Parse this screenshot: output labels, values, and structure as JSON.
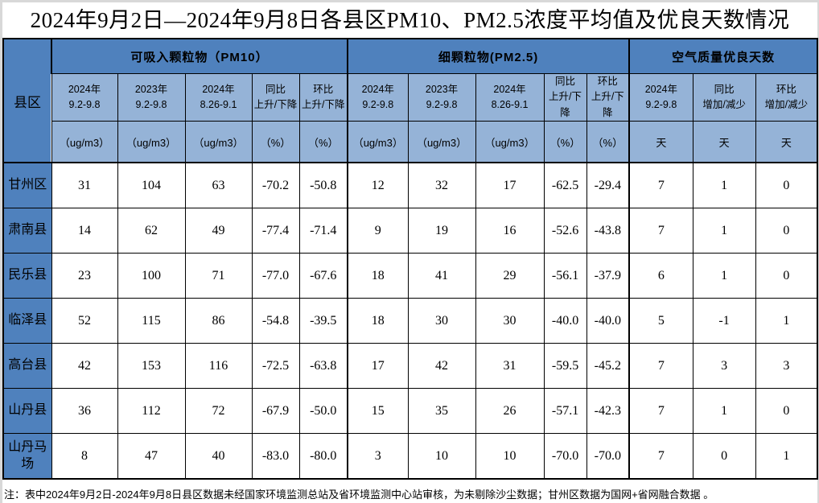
{
  "title": "2024年9月2日—2024年9月8日各县区PM10、PM2.5浓度平均值及优良天数情况",
  "table": {
    "corner": {
      "label": "县区"
    },
    "groups": [
      {
        "label": "可吸入颗粒物（PM10）",
        "columns": [
          {
            "line1": "2024年",
            "line2": "9.2-9.8",
            "unit": "（ug/m3）"
          },
          {
            "line1": "2023年",
            "line2": "9.2-9.8",
            "unit": "（ug/m3）"
          },
          {
            "line1": "2024年",
            "line2": "8.26-9.1",
            "unit": "（ug/m3）"
          },
          {
            "line1": "同比",
            "line2": "上升/下降",
            "unit": "（%）"
          },
          {
            "line1": "环比",
            "line2": "上升/下降",
            "unit": "（%）"
          }
        ]
      },
      {
        "label": "细颗粒物(PM2.5)",
        "columns": [
          {
            "line1": "2024年",
            "line2": "9.2-9.8",
            "unit": "（ug/m3）"
          },
          {
            "line1": "2023年",
            "line2": "9.2-9.8",
            "unit": "（ug/m3）"
          },
          {
            "line1": "2024年",
            "line2": "8.26-9.1",
            "unit": "（ug/m3）"
          },
          {
            "line1": "同比",
            "line2": "上升/下降",
            "unit": "（%）"
          },
          {
            "line1": "环比",
            "line2": "上升/下降",
            "unit": "（%）"
          }
        ]
      },
      {
        "label": "空气质量优良天数",
        "columns": [
          {
            "line1": "2024年",
            "line2": "9.2-9.8",
            "unit": "天"
          },
          {
            "line1": "同比",
            "line2": "增加/减少",
            "unit": "天"
          },
          {
            "line1": "环比",
            "line2": "增加/减少",
            "unit": "天"
          }
        ]
      }
    ],
    "rows": [
      {
        "county": "甘州区",
        "values": [
          "31",
          "104",
          "63",
          "-70.2",
          "-50.8",
          "12",
          "32",
          "17",
          "-62.5",
          "-29.4",
          "7",
          "1",
          "0"
        ]
      },
      {
        "county": "肃南县",
        "values": [
          "14",
          "62",
          "49",
          "-77.4",
          "-71.4",
          "9",
          "19",
          "16",
          "-52.6",
          "-43.8",
          "7",
          "1",
          "0"
        ]
      },
      {
        "county": "民乐县",
        "values": [
          "23",
          "100",
          "71",
          "-77.0",
          "-67.6",
          "18",
          "41",
          "29",
          "-56.1",
          "-37.9",
          "6",
          "1",
          "0"
        ]
      },
      {
        "county": "临泽县",
        "values": [
          "52",
          "115",
          "86",
          "-54.8",
          "-39.5",
          "18",
          "30",
          "30",
          "-40.0",
          "-40.0",
          "5",
          "-1",
          "1"
        ]
      },
      {
        "county": "高台县",
        "values": [
          "42",
          "153",
          "116",
          "-72.5",
          "-63.8",
          "17",
          "42",
          "31",
          "-59.5",
          "-45.2",
          "7",
          "3",
          "3"
        ]
      },
      {
        "county": "山丹县",
        "values": [
          "36",
          "112",
          "72",
          "-67.9",
          "-50.0",
          "15",
          "35",
          "26",
          "-57.1",
          "-42.3",
          "7",
          "1",
          "0"
        ]
      },
      {
        "county": "山丹马场",
        "values": [
          "8",
          "47",
          "40",
          "-83.0",
          "-80.0",
          "3",
          "10",
          "10",
          "-70.0",
          "-70.0",
          "7",
          "0",
          "1"
        ]
      }
    ]
  },
  "note": "注：表中2024年9月2日-2024年9月8日县区数据未经国家环境监测总站及省环境监测中心站审核，为未剔除沙尘数据；甘州区数据为国网+省网融合数据 。",
  "colors": {
    "header_blue": "#4F81BD",
    "subheader_blue": "#95B3D7",
    "grid_black": "#000000",
    "page_white": "#FFFFFF"
  }
}
